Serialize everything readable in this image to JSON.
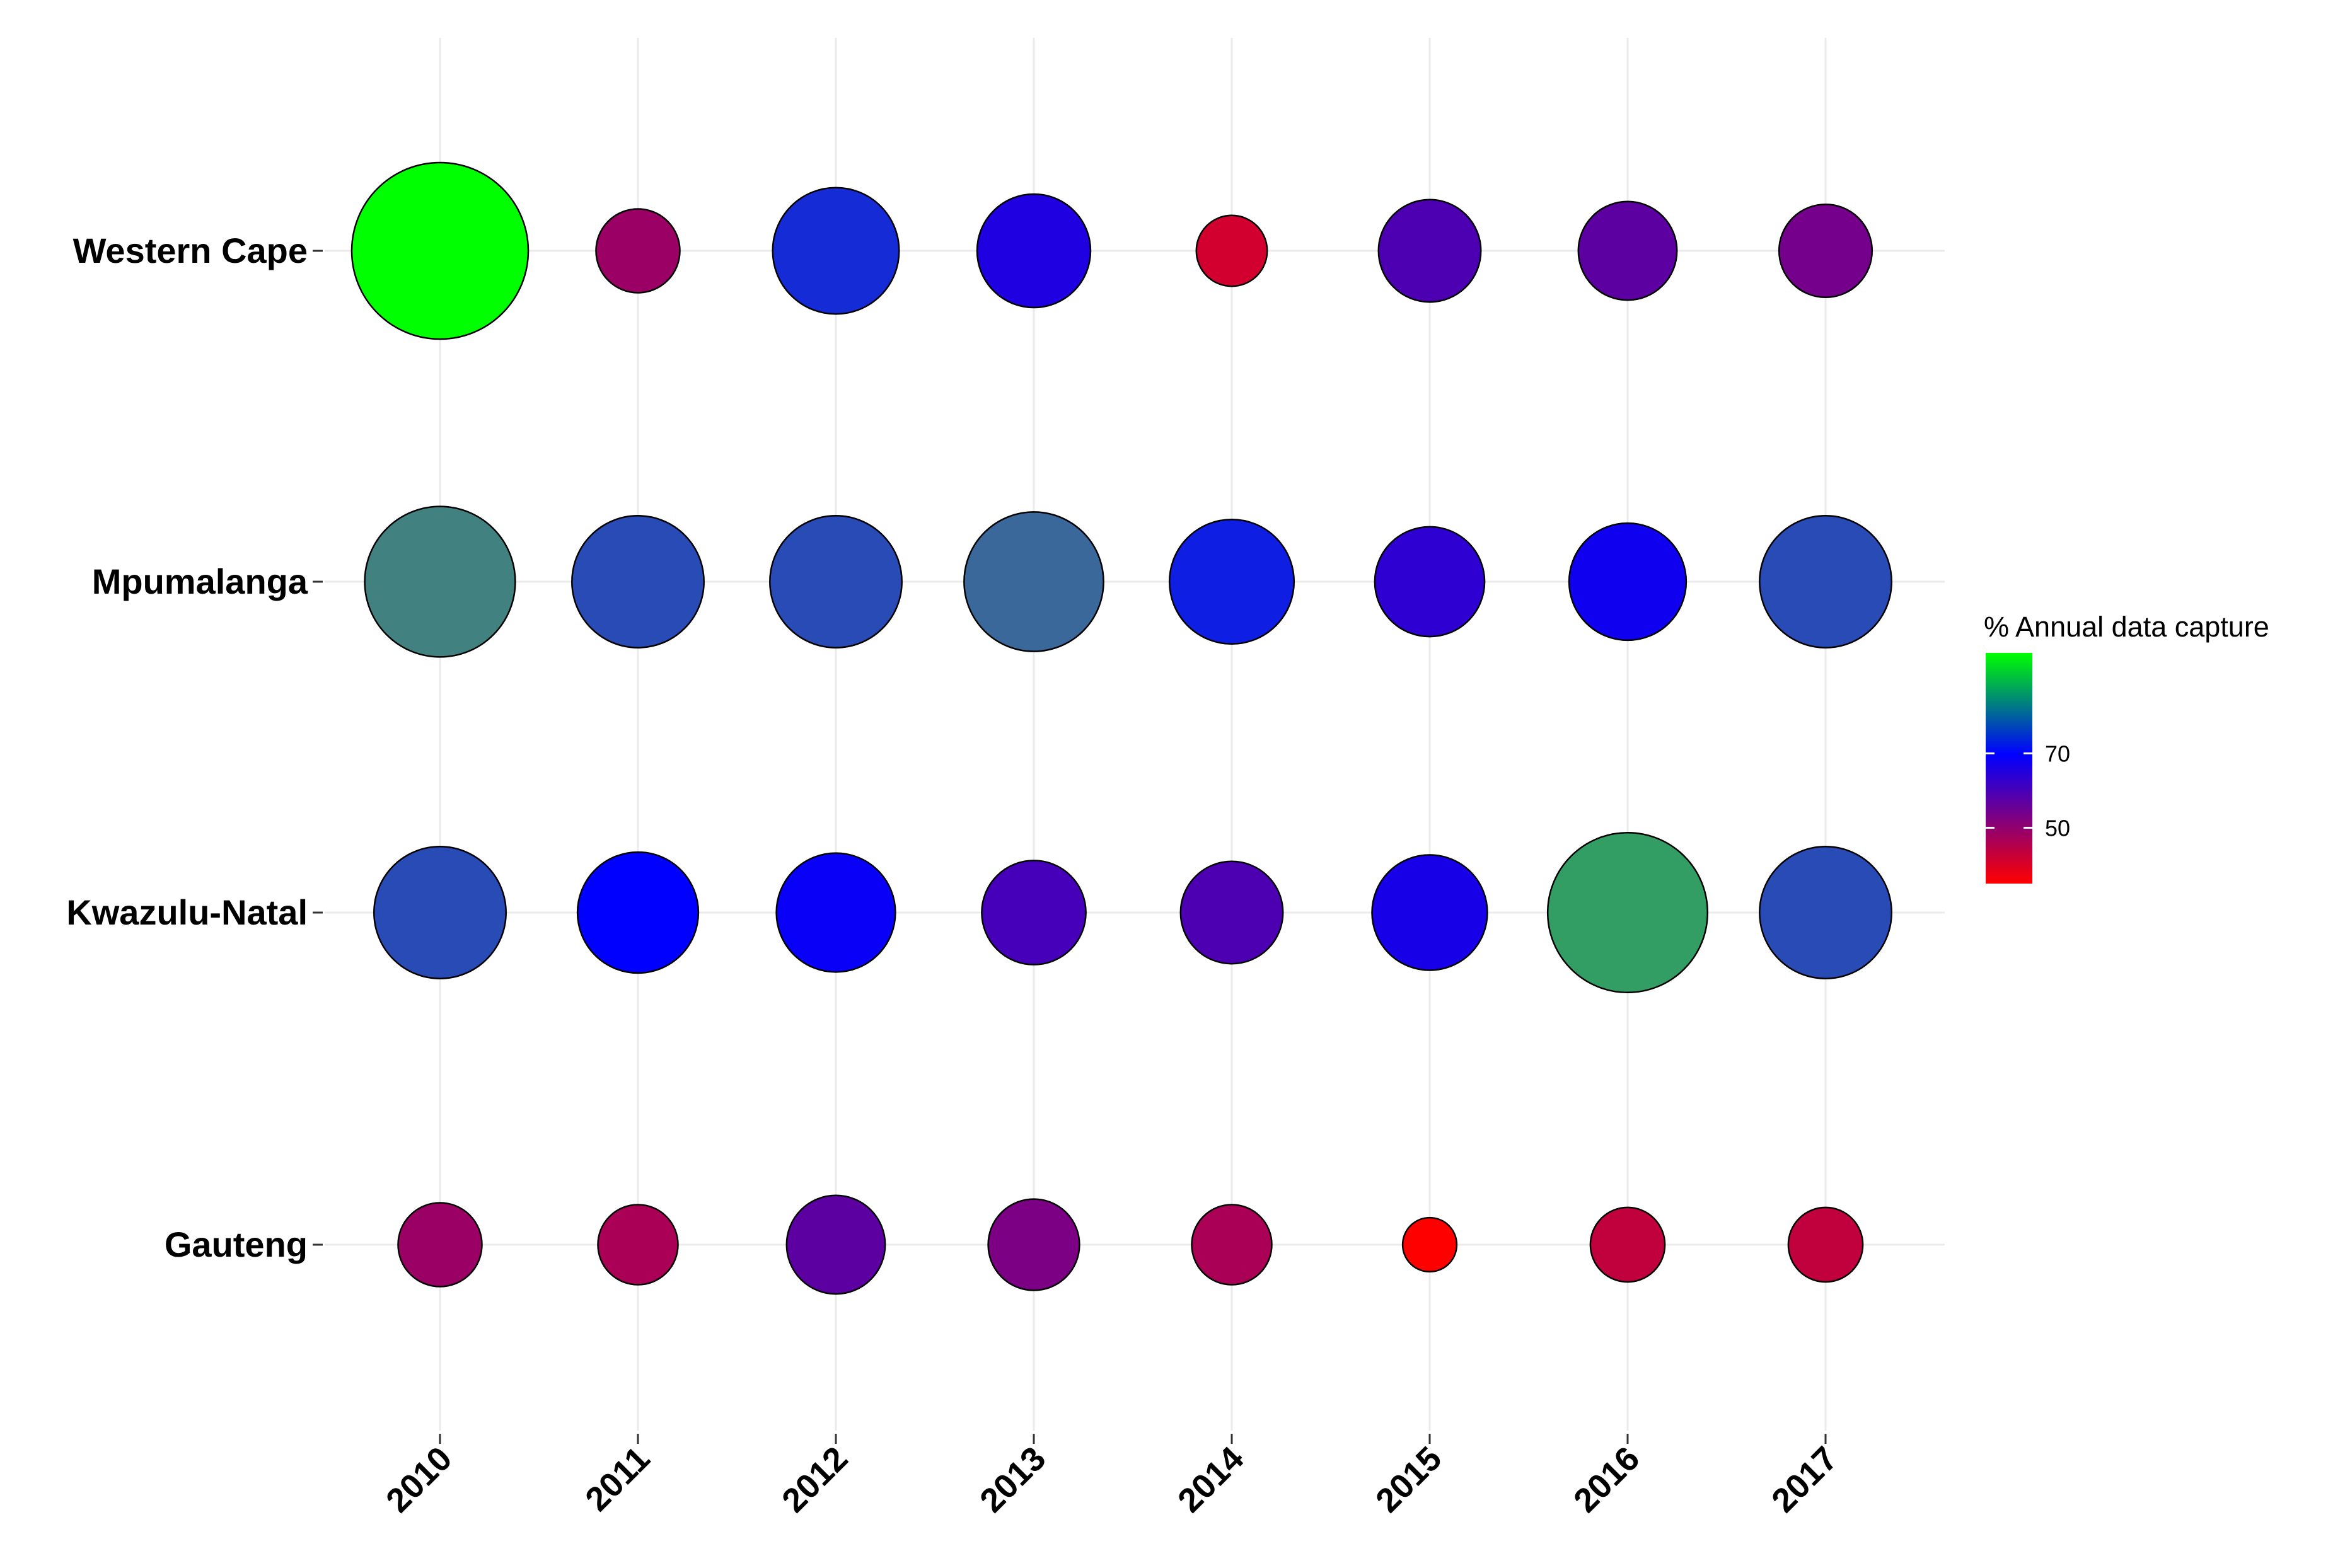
{
  "chart_data": {
    "type": "scatter",
    "x": [
      "2010",
      "2011",
      "2012",
      "2013",
      "2014",
      "2015",
      "2016",
      "2017"
    ],
    "categories_y": [
      "Western Cape",
      "Mpumalanga",
      "Kwazulu-Natal",
      "Gauteng"
    ],
    "series": [
      {
        "region": "Western Cape",
        "values": [
          98,
          48,
          71,
          64,
          41,
          58,
          56,
          53
        ]
      },
      {
        "region": "Mpumalanga",
        "values": [
          84,
          74,
          74,
          78,
          70,
          62,
          66,
          74
        ]
      },
      {
        "region": "Kwazulu-Natal",
        "values": [
          74,
          68,
          67,
          59,
          58,
          65,
          89,
          74
        ]
      },
      {
        "region": "Gauteng",
        "values": [
          48,
          46,
          56,
          52,
          46,
          32,
          43,
          43
        ]
      }
    ],
    "legend": {
      "title": "% Annual data capture",
      "ticks": [
        {
          "value": 70,
          "label": "70"
        },
        {
          "value": 50,
          "label": "50"
        }
      ],
      "range": [
        35,
        97
      ],
      "colors": [
        "#ff0000",
        "#0000ff",
        "#00ff00"
      ],
      "placement": "right"
    },
    "size_and_color_encode": "% Annual data capture",
    "grid": true
  }
}
